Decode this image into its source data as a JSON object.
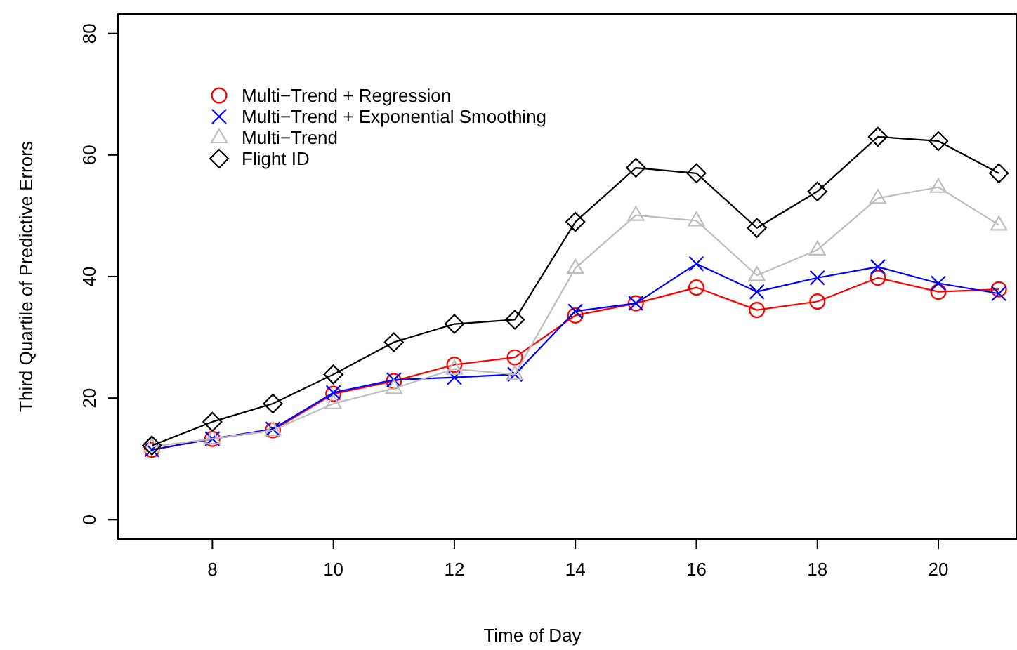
{
  "chart_data": {
    "type": "line",
    "xlabel": "Time of Day",
    "ylabel": "Third Quartile of Predictive Errors",
    "x": [
      7,
      8,
      9,
      10,
      11,
      12,
      13,
      14,
      15,
      16,
      17,
      18,
      19,
      20,
      21
    ],
    "xlim": [
      6.44,
      21.3
    ],
    "xticks": [
      8,
      10,
      12,
      14,
      16,
      18,
      20
    ],
    "ylim": [
      -3.2,
      83.2
    ],
    "yticks": [
      0,
      20,
      40,
      60,
      80
    ],
    "legend": "top left",
    "grid": false,
    "series": [
      {
        "name": "Multi−Trend + Regression",
        "color": "#ff0000",
        "marker": "circle",
        "values": [
          11.5,
          13.3,
          14.7,
          20.7,
          22.8,
          25.5,
          26.7,
          33.6,
          35.6,
          38.2,
          34.5,
          35.9,
          39.8,
          37.5,
          37.9
        ]
      },
      {
        "name": "Multi−Trend + Exponential Smoothing",
        "color": "#0000ff",
        "marker": "cross",
        "values": [
          11.5,
          13.3,
          14.9,
          20.9,
          23,
          23.4,
          23.9,
          34.3,
          35.6,
          42.1,
          37.5,
          39.8,
          41.6,
          38.9,
          37.2
        ]
      },
      {
        "name": "Multi−Trend",
        "color": "#bebebe",
        "marker": "triangle",
        "values": [
          12,
          13.3,
          14.7,
          19.1,
          21.6,
          24.8,
          23.9,
          41.4,
          50.1,
          49.2,
          40.2,
          44.4,
          52.9,
          54.7,
          48.5
        ]
      },
      {
        "name": "Flight ID",
        "color": "#000000",
        "marker": "diamond",
        "values": [
          12.2,
          16.1,
          19.1,
          23.9,
          29.2,
          32.2,
          32.9,
          49,
          57.9,
          57,
          48,
          54,
          63,
          62.3,
          57
        ]
      }
    ]
  }
}
